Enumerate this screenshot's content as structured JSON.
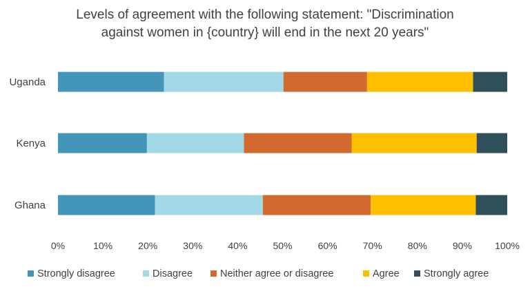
{
  "chart_data": {
    "type": "bar",
    "orientation": "horizontal",
    "stacked": true,
    "title_lines": [
      "Levels of agreement with the following statement: \"Discrimination",
      "against women in {country} will end in the next 20 years\""
    ],
    "categories": [
      "Uganda",
      "Kenya",
      "Ghana"
    ],
    "series": [
      {
        "name": "Strongly disagree",
        "color": "#4495BA",
        "values": [
          23.6,
          19.8,
          21.6
        ]
      },
      {
        "name": "Disagree",
        "color": "#A3D8E6",
        "values": [
          26.6,
          21.6,
          24.0
        ]
      },
      {
        "name": "Neither agree or disagree",
        "color": "#D2692E",
        "values": [
          18.6,
          24.0,
          24.0
        ]
      },
      {
        "name": "Agree",
        "color": "#FFBF00",
        "values": [
          23.6,
          27.8,
          23.4
        ]
      },
      {
        "name": "Strongly agree",
        "color": "#2F5059",
        "values": [
          7.6,
          6.8,
          7.0
        ]
      }
    ],
    "xlim": [
      0,
      100
    ],
    "x_ticks": [
      "0%",
      "10%",
      "20%",
      "30%",
      "40%",
      "50%",
      "60%",
      "70%",
      "80%",
      "90%",
      "100%"
    ],
    "grid": false,
    "legend_position": "bottom"
  }
}
